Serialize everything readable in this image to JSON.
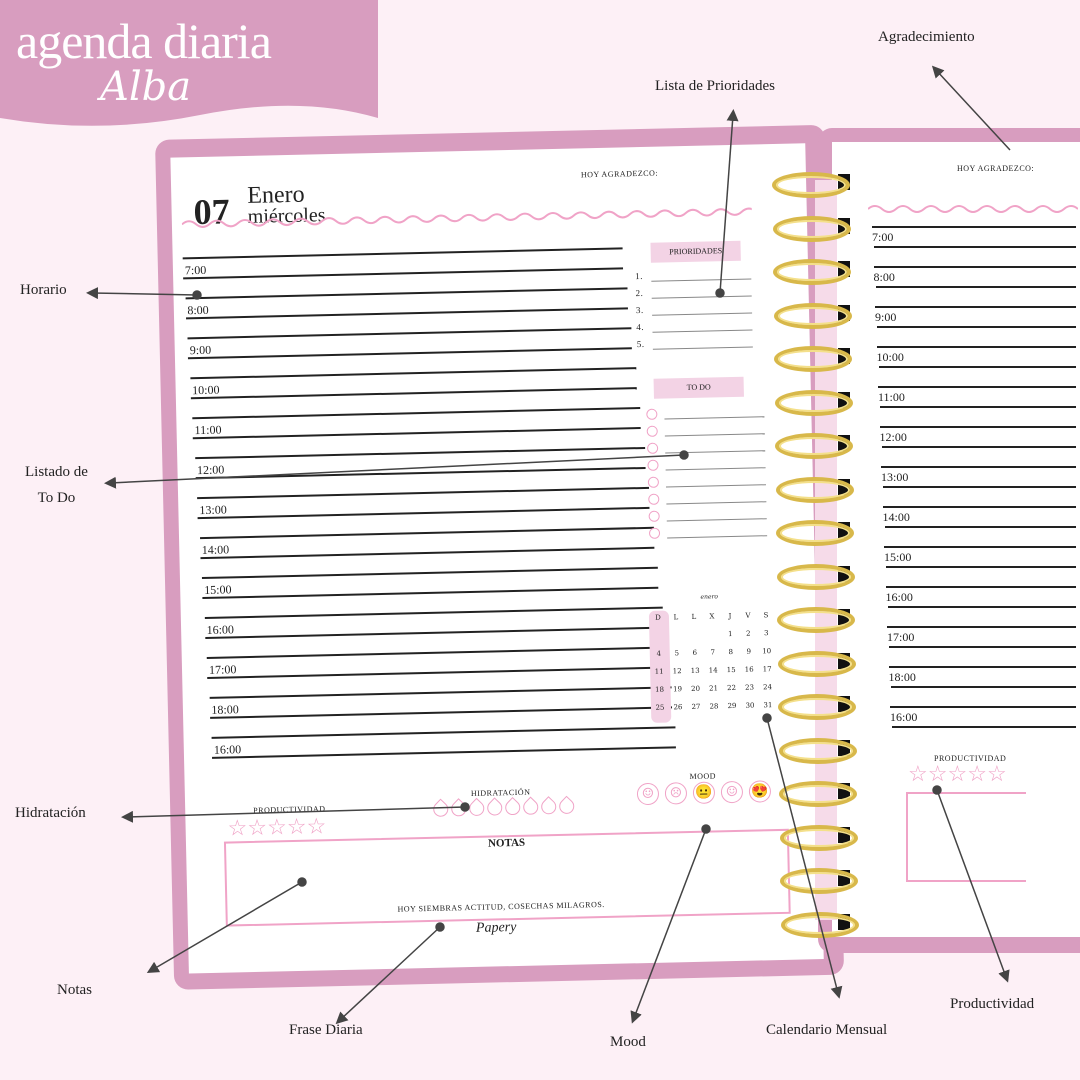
{
  "banner": {
    "title": "agenda diaria",
    "subtitle": "Alba"
  },
  "left_page": {
    "day": "07",
    "month": "Enero",
    "weekday": "miércoles",
    "gratitude_label": "HOY AGRADEZCO:",
    "hours": [
      "7:00",
      "8:00",
      "9:00",
      "10:00",
      "11:00",
      "12:00",
      "13:00",
      "14:00",
      "15:00",
      "16:00",
      "17:00",
      "18:00",
      "16:00"
    ],
    "priorities_label": "PRIORIDADES",
    "priorities": [
      "1.",
      "2.",
      "3.",
      "4.",
      "5."
    ],
    "todo_label": "TO DO",
    "todo_count": 8,
    "calendar": {
      "month": "enero",
      "days_header": [
        "D",
        "L",
        "L",
        "X",
        "J",
        "V",
        "S"
      ],
      "weeks": [
        [
          "",
          "",
          "",
          "",
          "1",
          "2",
          "3"
        ],
        [
          "4",
          "5",
          "6",
          "7",
          "8",
          "9",
          "10"
        ],
        [
          "11",
          "12",
          "13",
          "14",
          "15",
          "16",
          "17"
        ],
        [
          "18",
          "19",
          "20",
          "21",
          "22",
          "23",
          "24"
        ],
        [
          "25",
          "26",
          "27",
          "28",
          "29",
          "30",
          "31"
        ]
      ]
    },
    "productivity_label": "PRODUCTIVIDAD",
    "productivity_stars": 5,
    "hydration_label": "HIDRATACIÓN",
    "hydration_drops": 8,
    "mood_label": "MOOD",
    "moods": [
      "☺",
      "☹",
      "😐",
      "☺",
      "😍"
    ],
    "notes_label": "NOTAS",
    "quote": "HOY SIEMBRAS ACTITUD, COSECHAS MILAGROS.",
    "brand": "Papery"
  },
  "right_page": {
    "gratitude_label": "HOY AGRADEZCO:",
    "hours": [
      "7:00",
      "8:00",
      "9:00",
      "10:00",
      "11:00",
      "12:00",
      "13:00",
      "14:00",
      "15:00",
      "16:00",
      "17:00",
      "18:00",
      "16:00"
    ],
    "productivity_label": "PRODUCTIVIDAD"
  },
  "annotations": {
    "agradecimiento": "Agradecimiento",
    "prioridades": "Lista de Prioridades",
    "horario": "Horario",
    "todo": "Listado de\nTo Do",
    "hidratacion": "Hidratación",
    "notas": "Notas",
    "frase": "Frase Diaria",
    "mood": "Mood",
    "calendario": "Calendario Mensual",
    "productividad": "Productividad"
  },
  "colors": {
    "background": "#fdf0f6",
    "frame": "#d89dbf",
    "accent": "#f3d3e5",
    "ring": "#d8b84a"
  }
}
